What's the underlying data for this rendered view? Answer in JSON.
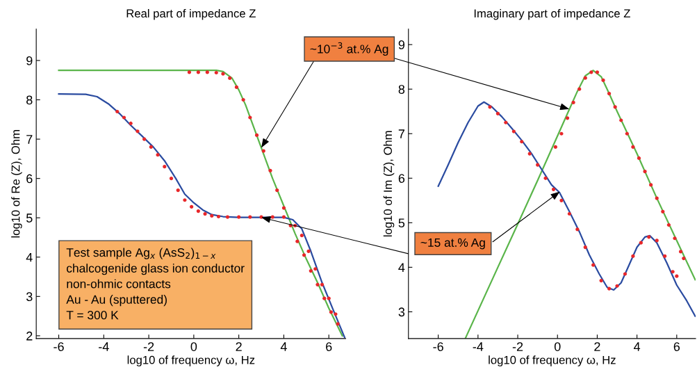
{
  "chart_data": [
    {
      "type": "line",
      "title": "Real part of impedance Z",
      "xlabel": "log10 of frequency ω, Hz",
      "ylabel": "log10 of Re (Z), Ohm",
      "xlim": [
        -7,
        6.75
      ],
      "ylim": [
        1.93,
        9.8
      ],
      "xticks": [
        -6,
        -4,
        -2,
        0,
        2,
        4,
        6
      ],
      "yticks": [
        2,
        3,
        4,
        5,
        6,
        7,
        8,
        9
      ],
      "series": [
        {
          "color": "#5ab54a",
          "x": [
            -6,
            1,
            1.3,
            1.7,
            2.0,
            2.3,
            2.6,
            3,
            3.5,
            4,
            4.5,
            5,
            5.5,
            6,
            6.6
          ],
          "values": [
            8.75,
            8.75,
            8.72,
            8.55,
            8.25,
            7.87,
            7.4,
            6.78,
            6.0,
            5.3,
            4.6,
            3.95,
            3.35,
            2.7,
            2.0
          ]
        },
        {
          "type": "scatter",
          "color": "#e8272a",
          "x": [
            -0.2,
            0.2,
            0.6,
            1.0,
            1.3,
            1.6,
            1.9,
            2.2,
            2.5,
            2.8,
            3.1,
            3.4,
            3.7,
            4,
            4.3,
            4.6,
            4.9,
            5.2,
            5.5,
            5.8,
            6.1,
            6.4
          ],
          "values": [
            8.7,
            8.7,
            8.7,
            8.69,
            8.66,
            8.55,
            8.32,
            8.0,
            7.55,
            7.1,
            6.7,
            6.2,
            5.7,
            5.25,
            4.8,
            4.4,
            4.05,
            3.65,
            3.3,
            2.95,
            2.6,
            2.3
          ]
        },
        {
          "type": "scatter",
          "color": "#e8272a",
          "x": [
            -3.4,
            -3.1,
            -2.8,
            -2.5,
            -2.2,
            -1.9,
            -1.6,
            -1.3,
            -1,
            -0.7,
            -0.4,
            -0.1,
            0.2,
            0.5,
            0.8,
            1.1,
            1.5,
            2,
            2.5,
            3,
            3.5,
            4,
            4.5,
            4.8,
            5.1,
            5.4,
            5.7,
            6,
            6.3
          ],
          "values": [
            7.7,
            7.55,
            7.4,
            7.2,
            7.0,
            6.8,
            6.6,
            6.3,
            6.0,
            5.7,
            5.45,
            5.28,
            5.17,
            5.1,
            5.05,
            5.03,
            5.02,
            5.02,
            5.02,
            5.02,
            5.02,
            5.02,
            4.8,
            4.55,
            4.15,
            3.7,
            3.3,
            2.95,
            2.55
          ]
        },
        {
          "color": "#2a4ba0",
          "x": [
            -6,
            -4.8,
            -4.3,
            -3.8,
            -3.3,
            -2.8,
            -2.3,
            -1.8,
            -1.3,
            -0.8,
            -0.4,
            0,
            0.4,
            0.8,
            1.3,
            2,
            3,
            4,
            4.4,
            4.8,
            5.2,
            5.7,
            6.2,
            6.7
          ],
          "values": [
            8.15,
            8.14,
            8.08,
            7.9,
            7.65,
            7.35,
            7.08,
            6.8,
            6.45,
            6.0,
            5.6,
            5.38,
            5.2,
            5.08,
            5.03,
            5.01,
            5.01,
            5.01,
            4.95,
            4.72,
            4.15,
            3.35,
            2.65,
            1.96
          ]
        }
      ],
      "annotations": [
        {
          "text": "~10$^{−3}$ at.% Ag",
          "x": 3,
          "y": 6.78
        },
        "Test sample Ag$_{x}$ (AsS$_{2}$)$_{1−x}$\nchalcogenide glass ion conductor\nnon-ohmic contacts\nAu - Au (sputtered)\nT = 300 K"
      ]
    },
    {
      "type": "line",
      "title": "Imaginary part of impedance Z",
      "xlabel": "log10 of frequency ω, Hz",
      "ylabel": "log10 of Im (Z), Ohm",
      "xlim": [
        -7.5,
        6.95
      ],
      "ylim": [
        2.4,
        9.35
      ],
      "xticks": [
        -6,
        -4,
        -2,
        0,
        2,
        4,
        6
      ],
      "yticks": [
        3,
        4,
        5,
        6,
        7,
        8,
        9
      ],
      "series": [
        {
          "color": "#5ab54a",
          "x": [
            -4.64,
            -3,
            -2,
            -1,
            0,
            0.6,
            1.0,
            1.4,
            1.8,
            2.2,
            2.6,
            3,
            4,
            5,
            6,
            6.93
          ],
          "values": [
            2.4,
            4.0,
            4.97,
            5.95,
            6.95,
            7.55,
            7.95,
            8.3,
            8.42,
            8.28,
            7.9,
            7.5,
            6.55,
            5.55,
            4.6,
            3.72
          ]
        },
        {
          "type": "scatter",
          "color": "#e8272a",
          "x": [
            -0.1,
            0.2,
            0.5,
            0.8,
            1.1,
            1.4,
            1.7,
            2.0,
            2.3,
            2.6,
            2.9,
            3.2,
            3.5,
            3.8,
            4.1,
            4.4,
            4.7,
            5.0,
            5.3,
            5.6,
            5.9,
            6.2,
            6.35
          ],
          "values": [
            6.7,
            7.0,
            7.35,
            7.7,
            8.0,
            8.25,
            8.38,
            8.38,
            8.2,
            7.9,
            7.6,
            7.3,
            7.0,
            6.7,
            6.45,
            6.15,
            5.85,
            5.55,
            5.25,
            4.95,
            4.65,
            4.35,
            4.2
          ]
        },
        {
          "type": "scatter",
          "color": "#e8272a",
          "x": [
            -3.4,
            -3.0,
            -2.6,
            -2.2,
            -1.8,
            -1.4,
            -1.0,
            -0.6,
            -0.2,
            0.2,
            0.6,
            1.0,
            1.4,
            1.8,
            2.2,
            2.6,
            3.0,
            3.4,
            3.8,
            4.2,
            4.6,
            5.0,
            5.4,
            5.8,
            6.0
          ],
          "values": [
            7.6,
            7.45,
            7.25,
            7.05,
            6.82,
            6.55,
            6.3,
            6.0,
            5.75,
            5.5,
            5.2,
            4.85,
            4.45,
            4.05,
            3.7,
            3.52,
            3.58,
            3.85,
            4.25,
            4.55,
            4.68,
            4.6,
            4.25,
            3.9,
            3.8
          ]
        },
        {
          "color": "#2a4ba0",
          "x": [
            -6,
            -5.5,
            -5,
            -4.5,
            -4,
            -3.7,
            -3.3,
            -2.8,
            -2.3,
            -1.8,
            -1.3,
            -0.8,
            -0.3,
            0.1,
            0.6,
            1.1,
            1.6,
            2.1,
            2.5,
            2.83,
            3.2,
            3.6,
            4,
            4.4,
            4.65,
            5,
            5.5,
            6,
            6.5,
            6.93
          ],
          "values": [
            5.82,
            6.3,
            6.8,
            7.25,
            7.62,
            7.71,
            7.6,
            7.38,
            7.12,
            6.85,
            6.55,
            6.2,
            5.85,
            5.68,
            5.25,
            4.8,
            4.28,
            3.85,
            3.55,
            3.49,
            3.65,
            4.05,
            4.45,
            4.68,
            4.71,
            4.55,
            4.1,
            3.6,
            3.25,
            2.9
          ]
        }
      ],
      "annotations": [
        {
          "text": "~15 at.% Ag",
          "x": 0.12,
          "y": 5.7
        }
      ]
    }
  ]
}
